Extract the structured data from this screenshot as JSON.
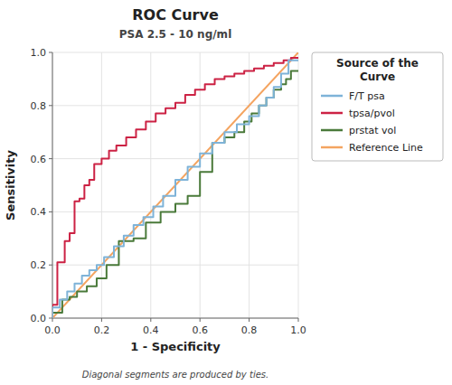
{
  "chart_data": {
    "type": "line",
    "title": "ROC Curve",
    "subtitle": "PSA 2.5 - 10 ng/ml",
    "x_label": "1 - Specificity",
    "y_label": "Sensitivity",
    "footnote": "Diagonal segments are produced by ties.",
    "legend_title": "Source of the\nCurve",
    "legend": "right",
    "grid": true,
    "xlim": [
      0.0,
      1.0
    ],
    "ylim": [
      0.0,
      1.0
    ],
    "xticks": [
      {
        "value": 0.0,
        "label": "0.0"
      },
      0.2,
      0.4,
      0.6,
      0.8,
      {
        "value": 1.0,
        "label": "1.0"
      }
    ],
    "yticks": [
      {
        "value": 0.0,
        "label": "0.0"
      },
      0.2,
      0.4,
      0.6,
      0.8,
      {
        "value": 1.0,
        "label": "1.0"
      }
    ],
    "series": [
      {
        "name": "F/T psa",
        "color": "#7EB3D8",
        "x": [
          0.0,
          0.0,
          0.03,
          0.03,
          0.06,
          0.06,
          0.09,
          0.09,
          0.12,
          0.12,
          0.15,
          0.15,
          0.18,
          0.18,
          0.21,
          0.21,
          0.25,
          0.25,
          0.29,
          0.29,
          0.33,
          0.33,
          0.37,
          0.37,
          0.41,
          0.41,
          0.45,
          0.45,
          0.5,
          0.5,
          0.55,
          0.55,
          0.6,
          0.6,
          0.65,
          0.65,
          0.7,
          0.7,
          0.75,
          0.75,
          0.8,
          0.8,
          0.84,
          0.84,
          0.87,
          0.87,
          0.9,
          0.9,
          0.93,
          0.93,
          0.96,
          0.96,
          1.0
        ],
        "values": [
          0.0,
          0.04,
          0.04,
          0.07,
          0.07,
          0.1,
          0.1,
          0.13,
          0.13,
          0.16,
          0.16,
          0.18,
          0.18,
          0.2,
          0.2,
          0.23,
          0.23,
          0.27,
          0.27,
          0.31,
          0.31,
          0.35,
          0.35,
          0.38,
          0.38,
          0.42,
          0.42,
          0.46,
          0.46,
          0.52,
          0.52,
          0.57,
          0.57,
          0.62,
          0.62,
          0.66,
          0.66,
          0.7,
          0.7,
          0.73,
          0.73,
          0.76,
          0.76,
          0.8,
          0.8,
          0.83,
          0.83,
          0.87,
          0.87,
          0.92,
          0.92,
          0.97,
          0.97
        ]
      },
      {
        "name": "tpsa/pvol",
        "color": "#CC2244",
        "x": [
          0.0,
          0.0,
          0.02,
          0.02,
          0.05,
          0.05,
          0.07,
          0.07,
          0.09,
          0.09,
          0.11,
          0.11,
          0.13,
          0.13,
          0.15,
          0.15,
          0.17,
          0.17,
          0.2,
          0.2,
          0.23,
          0.23,
          0.26,
          0.26,
          0.3,
          0.3,
          0.34,
          0.34,
          0.38,
          0.38,
          0.42,
          0.42,
          0.46,
          0.46,
          0.5,
          0.5,
          0.54,
          0.54,
          0.58,
          0.58,
          0.62,
          0.62,
          0.66,
          0.66,
          0.7,
          0.7,
          0.74,
          0.74,
          0.78,
          0.78,
          0.82,
          0.82,
          0.86,
          0.86,
          0.9,
          0.9,
          0.94,
          0.94,
          0.97,
          0.97,
          1.0
        ],
        "values": [
          0.0,
          0.05,
          0.05,
          0.21,
          0.21,
          0.29,
          0.29,
          0.32,
          0.32,
          0.44,
          0.44,
          0.45,
          0.45,
          0.5,
          0.5,
          0.52,
          0.52,
          0.58,
          0.58,
          0.6,
          0.6,
          0.63,
          0.63,
          0.65,
          0.65,
          0.68,
          0.68,
          0.71,
          0.71,
          0.74,
          0.74,
          0.77,
          0.77,
          0.79,
          0.79,
          0.81,
          0.81,
          0.84,
          0.84,
          0.86,
          0.86,
          0.88,
          0.88,
          0.9,
          0.9,
          0.91,
          0.91,
          0.92,
          0.92,
          0.93,
          0.93,
          0.94,
          0.94,
          0.95,
          0.95,
          0.96,
          0.96,
          0.97,
          0.97,
          0.98,
          0.98
        ]
      },
      {
        "name": "prstat vol",
        "color": "#4A7A3A",
        "x": [
          0.0,
          0.0,
          0.04,
          0.04,
          0.07,
          0.07,
          0.1,
          0.1,
          0.14,
          0.14,
          0.18,
          0.18,
          0.22,
          0.22,
          0.27,
          0.27,
          0.33,
          0.33,
          0.38,
          0.38,
          0.44,
          0.44,
          0.5,
          0.5,
          0.55,
          0.55,
          0.6,
          0.6,
          0.65,
          0.65,
          0.7,
          0.7,
          0.74,
          0.74,
          0.78,
          0.78,
          0.81,
          0.81,
          0.84,
          0.84,
          0.87,
          0.87,
          0.9,
          0.9,
          0.93,
          0.93,
          0.95,
          0.95,
          0.97,
          0.97,
          1.0
        ],
        "values": [
          0.0,
          0.02,
          0.02,
          0.07,
          0.07,
          0.08,
          0.08,
          0.1,
          0.1,
          0.12,
          0.12,
          0.15,
          0.15,
          0.2,
          0.2,
          0.29,
          0.29,
          0.3,
          0.3,
          0.36,
          0.36,
          0.4,
          0.4,
          0.43,
          0.43,
          0.46,
          0.46,
          0.55,
          0.55,
          0.66,
          0.66,
          0.68,
          0.68,
          0.7,
          0.7,
          0.74,
          0.74,
          0.77,
          0.77,
          0.8,
          0.8,
          0.83,
          0.83,
          0.86,
          0.86,
          0.88,
          0.88,
          0.9,
          0.9,
          0.93,
          0.93
        ]
      },
      {
        "name": "Reference Line",
        "color": "#F4A460",
        "x": [
          0,
          1
        ],
        "values": [
          0,
          1
        ]
      }
    ]
  }
}
